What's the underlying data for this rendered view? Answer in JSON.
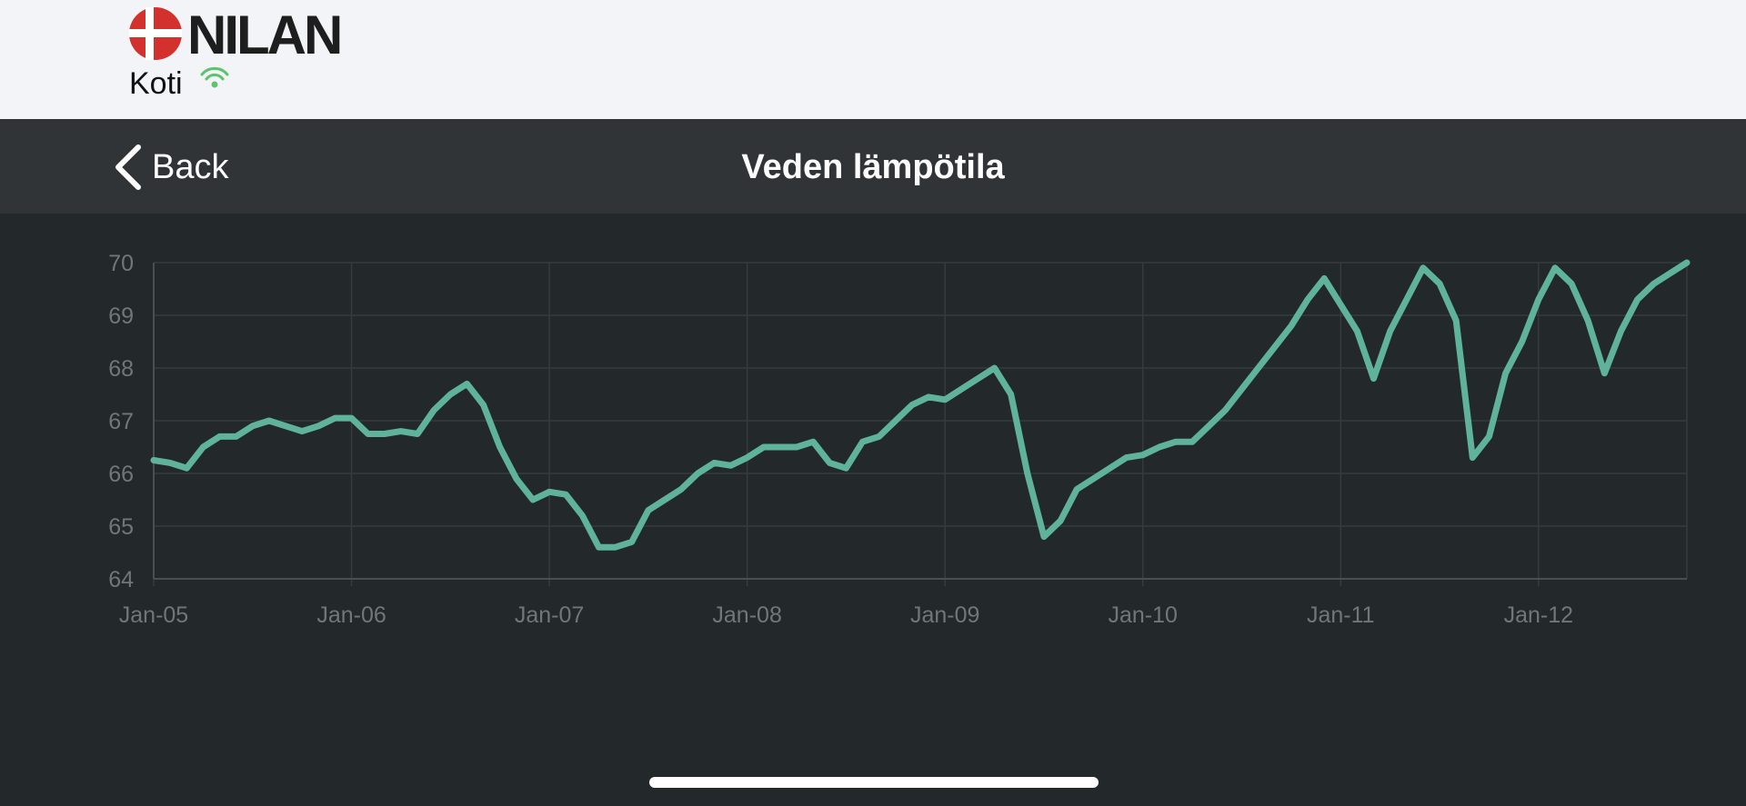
{
  "header": {
    "brand": "NILAN",
    "location": "Koti"
  },
  "nav": {
    "back": "Back"
  },
  "chart_data": {
    "type": "line",
    "title": "Veden lämpötila",
    "x": [
      "2005-01",
      "2005-02",
      "2005-03",
      "2005-04",
      "2005-05",
      "2005-06",
      "2005-07",
      "2005-08",
      "2005-09",
      "2005-10",
      "2005-11",
      "2005-12",
      "2006-01",
      "2006-02",
      "2006-03",
      "2006-04",
      "2006-05",
      "2006-06",
      "2006-07",
      "2006-08",
      "2006-09",
      "2006-10",
      "2006-11",
      "2006-12",
      "2007-01",
      "2007-02",
      "2007-03",
      "2007-04",
      "2007-05",
      "2007-06",
      "2007-07",
      "2007-08",
      "2007-09",
      "2007-10",
      "2007-11",
      "2007-12",
      "2008-01",
      "2008-02",
      "2008-03",
      "2008-04",
      "2008-05",
      "2008-06",
      "2008-07",
      "2008-08",
      "2008-09",
      "2008-10",
      "2008-11",
      "2008-12",
      "2009-01",
      "2009-02",
      "2009-03",
      "2009-04",
      "2009-05",
      "2009-06",
      "2009-07",
      "2009-08",
      "2009-09",
      "2009-10",
      "2009-11",
      "2009-12",
      "2010-01",
      "2010-02",
      "2010-03",
      "2010-04",
      "2010-05",
      "2010-06",
      "2010-07",
      "2010-08",
      "2010-09",
      "2010-10",
      "2010-11",
      "2010-12",
      "2011-01",
      "2011-02",
      "2011-03",
      "2011-04",
      "2011-05",
      "2011-06",
      "2011-07",
      "2011-08",
      "2011-09",
      "2011-10",
      "2011-11",
      "2011-12",
      "2012-01",
      "2012-02",
      "2012-03",
      "2012-04",
      "2012-05",
      "2012-06",
      "2012-07",
      "2012-08",
      "2012-09",
      "2012-10"
    ],
    "values": [
      66.25,
      66.2,
      66.1,
      66.5,
      66.7,
      66.7,
      66.9,
      67.0,
      66.9,
      66.8,
      66.9,
      67.05,
      67.05,
      66.75,
      66.75,
      66.8,
      66.75,
      67.2,
      67.5,
      67.7,
      67.3,
      66.5,
      65.9,
      65.5,
      65.65,
      65.6,
      65.2,
      64.6,
      64.6,
      64.7,
      65.3,
      65.5,
      65.7,
      66.0,
      66.2,
      66.15,
      66.3,
      66.5,
      66.5,
      66.5,
      66.6,
      66.2,
      66.1,
      66.6,
      66.7,
      67.0,
      67.3,
      67.45,
      67.4,
      67.6,
      67.8,
      68.0,
      67.5,
      66.0,
      64.8,
      65.1,
      65.7,
      65.9,
      66.1,
      66.3,
      66.35,
      66.5,
      66.6,
      66.6,
      66.9,
      67.2,
      67.6,
      68.0,
      68.4,
      68.8,
      69.3,
      69.7,
      69.2,
      68.7,
      67.8,
      68.7,
      69.3,
      69.9,
      69.6,
      68.9,
      66.3,
      66.7,
      67.9,
      68.5,
      69.3,
      69.9,
      69.6,
      68.9,
      67.9,
      68.7,
      69.3,
      69.6,
      69.8,
      70.0
    ],
    "color": "#5fb39a",
    "xlim": [
      "2005-01",
      "2012-10"
    ],
    "xticks": [
      {
        "value": "2005-01",
        "label": "Jan-05"
      },
      {
        "value": "2006-01",
        "label": "Jan-06"
      },
      {
        "value": "2007-01",
        "label": "Jan-07"
      },
      {
        "value": "2008-01",
        "label": "Jan-08"
      },
      {
        "value": "2009-01",
        "label": "Jan-09"
      },
      {
        "value": "2010-01",
        "label": "Jan-10"
      },
      {
        "value": "2011-01",
        "label": "Jan-11"
      },
      {
        "value": "2012-01",
        "label": "Jan-12"
      }
    ],
    "ylim": [
      64,
      70
    ],
    "yticks": [
      64,
      65,
      66,
      67,
      68,
      69,
      70
    ],
    "grid": true
  }
}
